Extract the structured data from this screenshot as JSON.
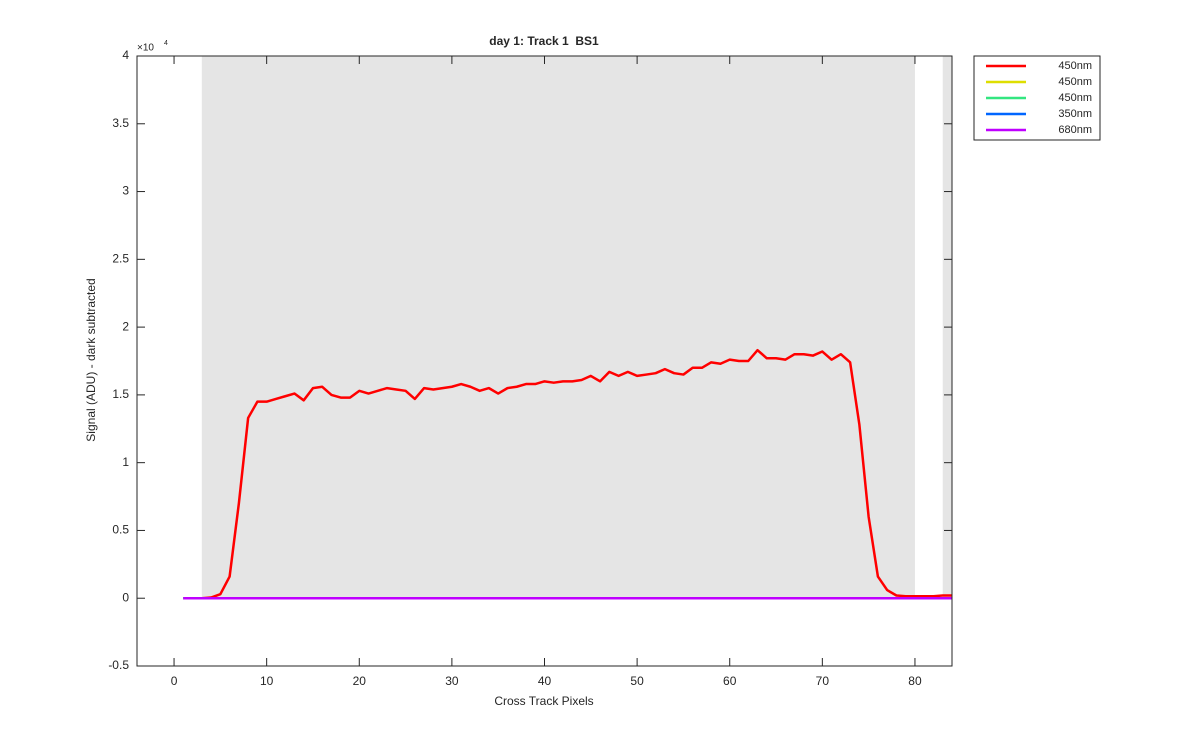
{
  "chart_data": {
    "type": "line",
    "title": "day 1: Track 1  BS1",
    "x_label": "Cross Track Pixels",
    "y_label": "Signal (ADU) - dark subtracted",
    "y_scale_base": "×10",
    "y_scale_exponent": "4",
    "xlim": [
      -4,
      84
    ],
    "ylim": [
      -0.5,
      4
    ],
    "xticks": [
      0,
      10,
      20,
      30,
      40,
      50,
      60,
      70,
      80
    ],
    "yticks": [
      -0.5,
      0,
      0.5,
      1,
      1.5,
      2,
      2.5,
      3,
      3.5,
      4
    ],
    "shaded_regions": [
      {
        "x": [
          3,
          80
        ],
        "y": [
          0,
          4
        ]
      },
      {
        "x": [
          83,
          84
        ],
        "y": [
          0,
          4
        ]
      }
    ],
    "shade_color": "#e5e5e5",
    "legend": "outside-upper-right",
    "x": [
      1,
      2,
      3,
      4,
      5,
      6,
      7,
      8,
      9,
      10,
      11,
      12,
      13,
      14,
      15,
      16,
      17,
      18,
      19,
      20,
      21,
      22,
      23,
      24,
      25,
      26,
      27,
      28,
      29,
      30,
      31,
      32,
      33,
      34,
      35,
      36,
      37,
      38,
      39,
      40,
      41,
      42,
      43,
      44,
      45,
      46,
      47,
      48,
      49,
      50,
      51,
      52,
      53,
      54,
      55,
      56,
      57,
      58,
      59,
      60,
      61,
      62,
      63,
      64,
      65,
      66,
      67,
      68,
      69,
      70,
      71,
      72,
      73,
      74,
      75,
      76,
      77,
      78,
      79,
      80,
      81,
      82,
      83,
      84
    ],
    "series": [
      {
        "name": "450nm",
        "color": "#ff0000",
        "values": [
          0,
          0,
          0,
          0.005,
          0.03,
          0.16,
          0.7,
          1.33,
          1.45,
          1.45,
          1.47,
          1.49,
          1.51,
          1.46,
          1.55,
          1.56,
          1.5,
          1.48,
          1.48,
          1.53,
          1.51,
          1.53,
          1.55,
          1.54,
          1.53,
          1.47,
          1.55,
          1.54,
          1.55,
          1.56,
          1.58,
          1.56,
          1.53,
          1.55,
          1.51,
          1.55,
          1.56,
          1.58,
          1.58,
          1.6,
          1.59,
          1.6,
          1.6,
          1.61,
          1.64,
          1.6,
          1.67,
          1.64,
          1.67,
          1.64,
          1.65,
          1.66,
          1.69,
          1.66,
          1.65,
          1.7,
          1.7,
          1.74,
          1.73,
          1.76,
          1.75,
          1.75,
          1.83,
          1.77,
          1.77,
          1.76,
          1.8,
          1.8,
          1.79,
          1.82,
          1.76,
          1.8,
          1.74,
          1.28,
          0.6,
          0.16,
          0.06,
          0.02,
          0.015,
          0.015,
          0.015,
          0.015,
          0.02,
          0.02
        ]
      },
      {
        "name": "450nm",
        "color": "#dede00",
        "values": [
          0,
          0,
          0,
          0,
          0,
          0,
          0,
          0,
          0,
          0,
          0,
          0,
          0,
          0,
          0,
          0,
          0,
          0,
          0,
          0,
          0,
          0,
          0,
          0,
          0,
          0,
          0,
          0,
          0,
          0,
          0,
          0,
          0,
          0,
          0,
          0,
          0,
          0,
          0,
          0,
          0,
          0,
          0,
          0,
          0,
          0,
          0,
          0,
          0,
          0,
          0,
          0,
          0,
          0,
          0,
          0,
          0,
          0,
          0,
          0,
          0,
          0,
          0,
          0,
          0,
          0,
          0,
          0,
          0,
          0,
          0,
          0,
          0,
          0,
          0,
          0,
          0,
          0,
          0,
          0,
          0,
          0,
          0,
          0
        ]
      },
      {
        "name": "450nm",
        "color": "#33e680",
        "values": [
          0,
          0,
          0,
          0,
          0,
          0,
          0,
          0,
          0,
          0,
          0,
          0,
          0,
          0,
          0,
          0,
          0,
          0,
          0,
          0,
          0,
          0,
          0,
          0,
          0,
          0,
          0,
          0,
          0,
          0,
          0,
          0,
          0,
          0,
          0,
          0,
          0,
          0,
          0,
          0,
          0,
          0,
          0,
          0,
          0,
          0,
          0,
          0,
          0,
          0,
          0,
          0,
          0,
          0,
          0,
          0,
          0,
          0,
          0,
          0,
          0,
          0,
          0,
          0,
          0,
          0,
          0,
          0,
          0,
          0,
          0,
          0,
          0,
          0,
          0,
          0,
          0,
          0,
          0,
          0,
          0,
          0,
          0,
          0
        ]
      },
      {
        "name": "350nm",
        "color": "#0066ff",
        "values": [
          0,
          0,
          0,
          0,
          0,
          0,
          0,
          0,
          0,
          0,
          0,
          0,
          0,
          0,
          0,
          0,
          0,
          0,
          0,
          0,
          0,
          0,
          0,
          0,
          0,
          0,
          0,
          0,
          0,
          0,
          0,
          0,
          0,
          0,
          0,
          0,
          0,
          0,
          0,
          0,
          0,
          0,
          0,
          0,
          0,
          0,
          0,
          0,
          0,
          0,
          0,
          0,
          0,
          0,
          0,
          0,
          0,
          0,
          0,
          0,
          0,
          0,
          0,
          0,
          0,
          0,
          0,
          0,
          0,
          0,
          0,
          0,
          0,
          0,
          0,
          0,
          0,
          0,
          0,
          0,
          0,
          0,
          0,
          0
        ]
      },
      {
        "name": "680nm",
        "color": "#bf00ff",
        "values": [
          0,
          0,
          0,
          0,
          0,
          0,
          0,
          0,
          0,
          0,
          0,
          0,
          0,
          0,
          0,
          0,
          0,
          0,
          0,
          0,
          0,
          0,
          0,
          0,
          0,
          0,
          0,
          0,
          0,
          0,
          0,
          0,
          0,
          0,
          0,
          0,
          0,
          0,
          0,
          0,
          0,
          0,
          0,
          0,
          0,
          0,
          0,
          0,
          0,
          0,
          0,
          0,
          0,
          0,
          0,
          0,
          0,
          0,
          0,
          0,
          0,
          0,
          0,
          0,
          0,
          0,
          0,
          0,
          0,
          0,
          0,
          0,
          0,
          0,
          0,
          0,
          0,
          0,
          0,
          0,
          0,
          0,
          0,
          0
        ]
      }
    ]
  }
}
